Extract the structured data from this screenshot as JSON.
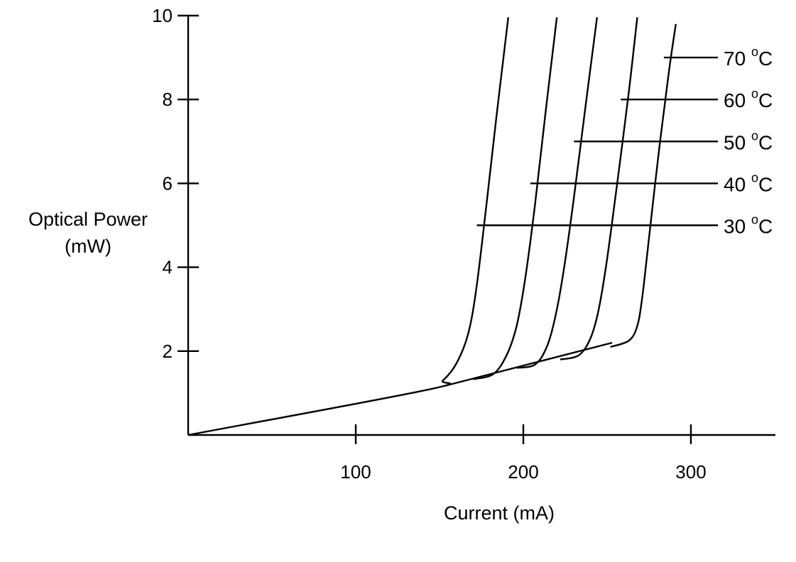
{
  "chart_data": {
    "type": "line",
    "title": "",
    "xlabel": "Current (mA)",
    "ylabel_line1": "Optical Power",
    "ylabel_line2": "(mW)",
    "xlim": [
      0,
      350
    ],
    "ylim": [
      0,
      10
    ],
    "x_ticks": [
      100,
      200,
      300
    ],
    "y_ticks": [
      2,
      4,
      6,
      8,
      10
    ],
    "grid": false,
    "legend_placement": "right, labels with leader lines to curves",
    "line_color": "#000000",
    "series": [
      {
        "name": "30 °C",
        "label_base": "30 ",
        "label_sup": "o",
        "label_unit": "C",
        "label_y": 5.0,
        "points": [
          [
            0,
            0
          ],
          [
            143,
            1.08
          ],
          [
            152,
            1.3
          ],
          [
            160,
            1.7
          ],
          [
            167,
            2.4
          ],
          [
            172,
            3.5
          ],
          [
            178,
            5.5
          ],
          [
            184,
            7.6
          ],
          [
            191,
            9.96
          ]
        ]
      },
      {
        "name": "40 °C",
        "label_base": "40 ",
        "label_sup": "o",
        "label_unit": "C",
        "label_y": 6.0,
        "points": [
          [
            170,
            1.33
          ],
          [
            182,
            1.45
          ],
          [
            190,
            1.9
          ],
          [
            196,
            2.6
          ],
          [
            201,
            3.7
          ],
          [
            207,
            5.5
          ],
          [
            213,
            7.6
          ],
          [
            220,
            9.96
          ]
        ]
      },
      {
        "name": "50 °C",
        "label_base": "50 ",
        "label_sup": "o",
        "label_unit": "C",
        "label_y": 7.0,
        "points": [
          [
            196,
            1.6
          ],
          [
            207,
            1.68
          ],
          [
            214,
            2.1
          ],
          [
            219,
            2.8
          ],
          [
            224,
            3.9
          ],
          [
            230,
            5.6
          ],
          [
            237,
            7.8
          ],
          [
            244,
            9.96
          ]
        ]
      },
      {
        "name": "60 °C",
        "label_base": "60 ",
        "label_sup": "o",
        "label_unit": "C",
        "label_y": 8.0,
        "points": [
          [
            222,
            1.8
          ],
          [
            233,
            1.9
          ],
          [
            240,
            2.3
          ],
          [
            245,
            3.0
          ],
          [
            250,
            4.2
          ],
          [
            256,
            6.0
          ],
          [
            263,
            8.2
          ],
          [
            268,
            9.96
          ]
        ]
      },
      {
        "name": "70 °C",
        "label_base": "70 ",
        "label_sup": "o",
        "label_unit": "C",
        "label_y": 9.0,
        "points": [
          [
            252,
            2.1
          ],
          [
            263,
            2.25
          ],
          [
            268,
            2.6
          ],
          [
            271,
            3.3
          ],
          [
            275,
            4.7
          ],
          [
            281,
            6.8
          ],
          [
            287,
            8.7
          ],
          [
            291,
            9.8
          ]
        ]
      }
    ],
    "threshold_line": {
      "points": [
        [
          153,
          1.17
        ],
        [
          253,
          2.2
        ]
      ]
    }
  }
}
